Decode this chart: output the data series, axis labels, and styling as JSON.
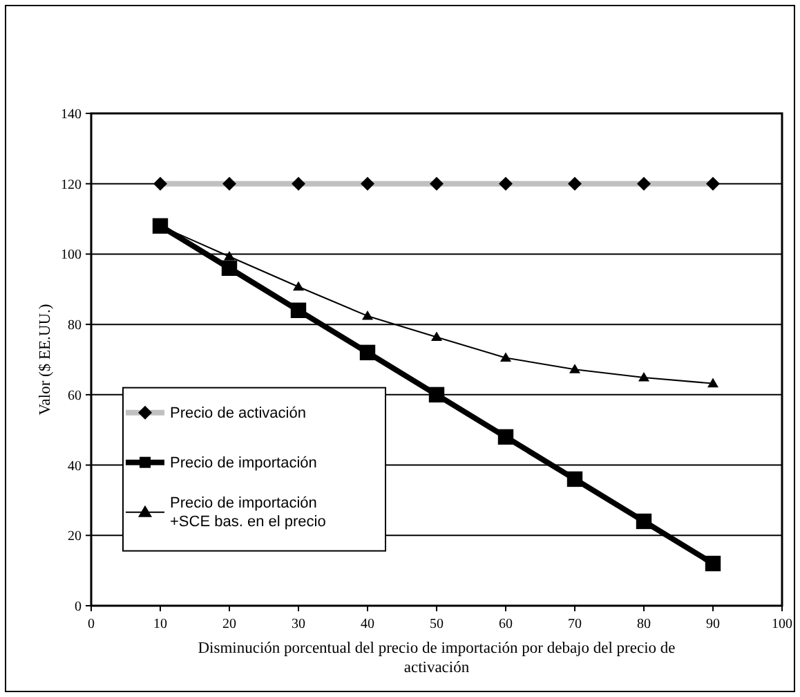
{
  "chart_data": {
    "type": "line",
    "xlabel": "Disminución porcentual del precio de importación por debajo del precio de activación",
    "ylabel": "Valor ($ EE.UU.)",
    "x": [
      10,
      20,
      30,
      40,
      50,
      60,
      70,
      80,
      90
    ],
    "series": [
      {
        "name": "Precio de activación",
        "color": "#c0c0c0",
        "marker": "diamond",
        "values": [
          120,
          120,
          120,
          120,
          120,
          120,
          120,
          120,
          120
        ]
      },
      {
        "name": "Precio de importación",
        "color": "#000000",
        "marker": "square",
        "values": [
          108,
          96,
          84,
          72,
          60,
          48,
          36,
          24,
          12
        ]
      },
      {
        "name": "Precio de importación +SCE bas. en el precio",
        "color": "#000000",
        "marker": "triangle",
        "values": [
          108,
          99.3,
          90.7,
          82.4,
          76.4,
          70.5,
          67.2,
          64.9,
          63.2
        ]
      }
    ],
    "xlim": [
      0,
      100
    ],
    "xticks": [
      0,
      10,
      20,
      30,
      40,
      50,
      60,
      70,
      80,
      90,
      100
    ],
    "ylim": [
      0,
      140
    ],
    "yticks": [
      0,
      20,
      40,
      60,
      80,
      100,
      120,
      140
    ],
    "grid": "y",
    "legend": "bottom left"
  }
}
